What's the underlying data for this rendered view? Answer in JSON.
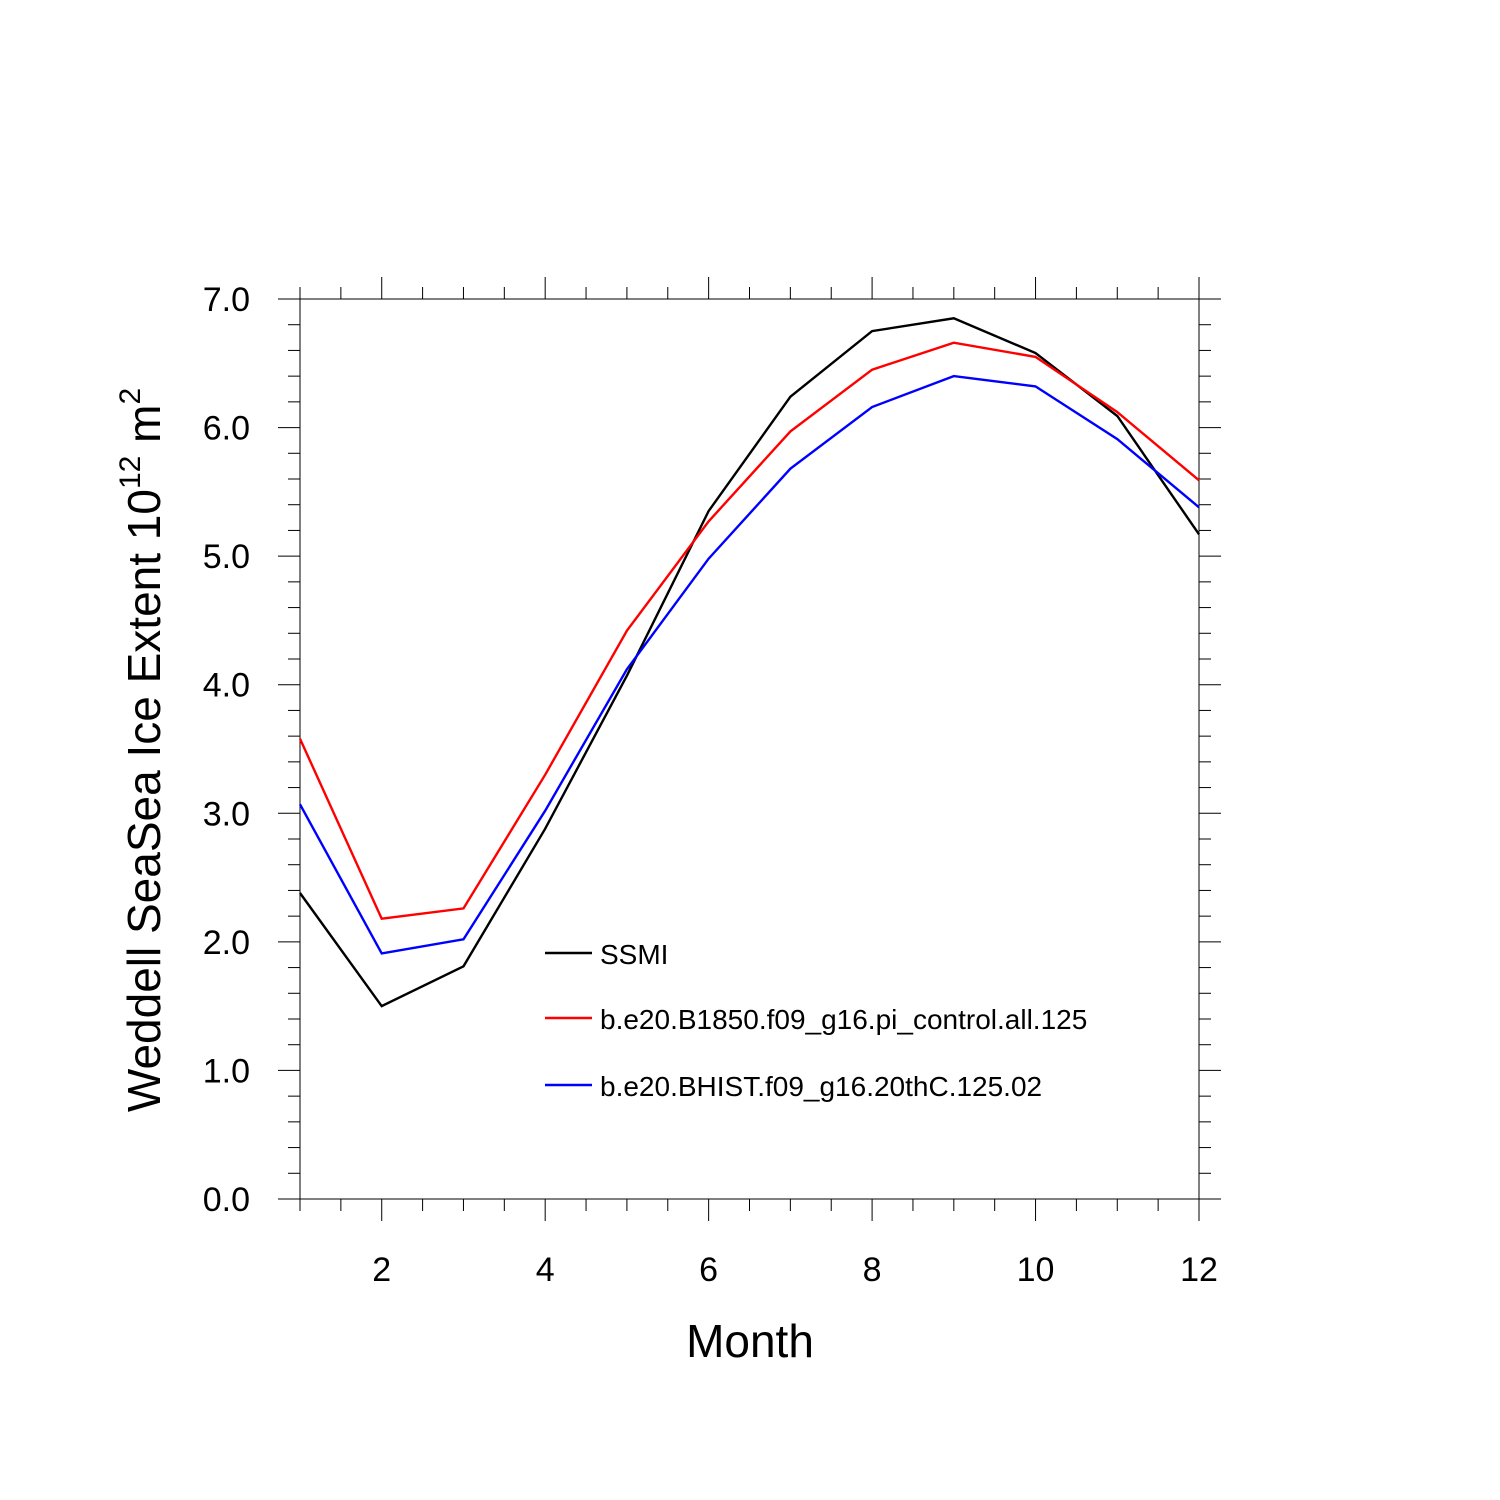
{
  "chart_data": {
    "type": "line",
    "xlabel": "Month",
    "ylabel_main": "Weddell SeaSea Ice Extent 10",
    "ylabel_exp": "12",
    "ylabel_unit": " m",
    "ylabel_unit_exp": "2",
    "xlim": [
      1,
      12
    ],
    "ylim": [
      0,
      7
    ],
    "x_ticks": [
      2,
      4,
      6,
      8,
      10,
      12
    ],
    "x_tick_labels": [
      "2",
      "4",
      "6",
      "8",
      "10",
      "12"
    ],
    "y_ticks": [
      0,
      1,
      2,
      3,
      4,
      5,
      6,
      7
    ],
    "y_tick_labels": [
      "0.0",
      "1.0",
      "2.0",
      "3.0",
      "4.0",
      "5.0",
      "6.0",
      "7.0"
    ],
    "x": [
      1,
      2,
      3,
      4,
      5,
      6,
      7,
      8,
      9,
      10,
      11,
      12
    ],
    "grid": false,
    "legend_position": "center",
    "series": [
      {
        "name": "SSMI",
        "color": "#000000",
        "values": [
          2.38,
          1.5,
          1.81,
          2.88,
          4.07,
          5.35,
          6.24,
          6.75,
          6.85,
          6.58,
          6.09,
          5.17
        ]
      },
      {
        "name": "b.e20.B1850.f09_g16.pi_control.all.125",
        "color": "#ff0000",
        "values": [
          3.58,
          2.18,
          2.26,
          3.3,
          4.42,
          5.27,
          5.97,
          6.45,
          6.66,
          6.55,
          6.12,
          5.59
        ]
      },
      {
        "name": "b.e20.BHIST.f09_g16.20thC.125.02",
        "color": "#0000ff",
        "values": [
          3.07,
          1.91,
          2.02,
          3.02,
          4.12,
          4.98,
          5.68,
          6.16,
          6.4,
          6.32,
          5.91,
          5.38
        ]
      }
    ]
  }
}
